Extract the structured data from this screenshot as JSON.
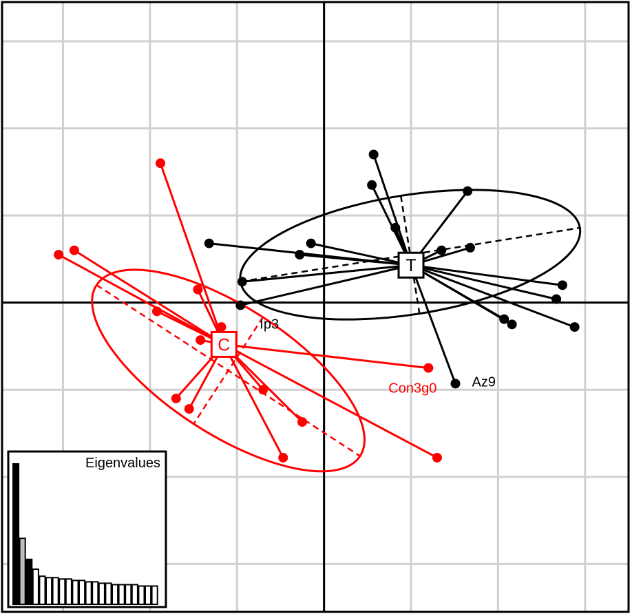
{
  "chart_data": {
    "type": "scatter",
    "title": "",
    "xlabel": "",
    "ylabel": "",
    "grid": true,
    "grid_step": 1,
    "xlim": [
      -3.7,
      3.5
    ],
    "ylim": [
      -3.55,
      3.45
    ],
    "groups": [
      {
        "name": "C",
        "color": "#ff0000",
        "centroid": [
          -1.15,
          -0.48
        ],
        "ellipse": {
          "cx": -1.1,
          "cy": -0.78,
          "rx": 3.61,
          "ry": 1.46,
          "angle_deg": 33
        },
        "points": [
          {
            "x": -1.88,
            "y": 1.6
          },
          {
            "x": -3.05,
            "y": 0.55
          },
          {
            "x": -2.87,
            "y": 0.6
          },
          {
            "x": -1.45,
            "y": 0.15
          },
          {
            "x": -1.92,
            "y": -0.1
          },
          {
            "x": -1.18,
            "y": -0.28
          },
          {
            "x": -1.42,
            "y": -0.43
          },
          {
            "x": -0.7,
            "y": -1.0
          },
          {
            "x": -1.7,
            "y": -1.1
          },
          {
            "x": -1.55,
            "y": -1.22
          },
          {
            "x": -0.25,
            "y": -1.37
          },
          {
            "x": -0.47,
            "y": -1.78
          },
          {
            "x": 1.2,
            "y": -0.75
          },
          {
            "x": 1.3,
            "y": -1.78
          }
        ]
      },
      {
        "name": "T",
        "color": "#000000",
        "centroid": [
          1.0,
          0.43
        ],
        "ellipse": {
          "cx": 0.99,
          "cy": 0.55,
          "rx": 3.95,
          "ry": 1.37,
          "angle_deg": -9
        },
        "points": [
          {
            "x": 0.57,
            "y": 1.7
          },
          {
            "x": 0.55,
            "y": 1.35
          },
          {
            "x": 0.82,
            "y": 0.86
          },
          {
            "x": 1.65,
            "y": 1.28
          },
          {
            "x": 1.68,
            "y": 0.63
          },
          {
            "x": 1.35,
            "y": 0.6
          },
          {
            "x": -1.32,
            "y": 0.68
          },
          {
            "x": -0.15,
            "y": 0.68
          },
          {
            "x": -0.28,
            "y": 0.55
          },
          {
            "x": -0.94,
            "y": 0.24
          },
          {
            "x": -0.96,
            "y": -0.03
          },
          {
            "x": 2.74,
            "y": 0.2
          },
          {
            "x": 2.67,
            "y": 0.04
          },
          {
            "x": 2.07,
            "y": -0.19
          },
          {
            "x": 2.16,
            "y": -0.25
          },
          {
            "x": 2.88,
            "y": -0.28
          },
          {
            "x": 1.51,
            "y": -0.93
          }
        ]
      }
    ],
    "point_labels": [
      {
        "text": "Ip3",
        "x": -0.96,
        "y": -0.03,
        "color": "#000000"
      },
      {
        "text": "Az9",
        "x": 1.51,
        "y": -0.93,
        "color": "#000000"
      },
      {
        "text": "Con3g0",
        "x": 1.2,
        "y": -0.75,
        "color": "#ff0000"
      }
    ],
    "inset": {
      "title": "Eigenvalues",
      "values": [
        100,
        47,
        32,
        25,
        20,
        19,
        19,
        18,
        18,
        17,
        17,
        16,
        16,
        15,
        15,
        14,
        14,
        14,
        14,
        13,
        13,
        13
      ],
      "fills": [
        "#000000",
        "#bebebe",
        "#000000",
        "#ffffff"
      ]
    }
  }
}
